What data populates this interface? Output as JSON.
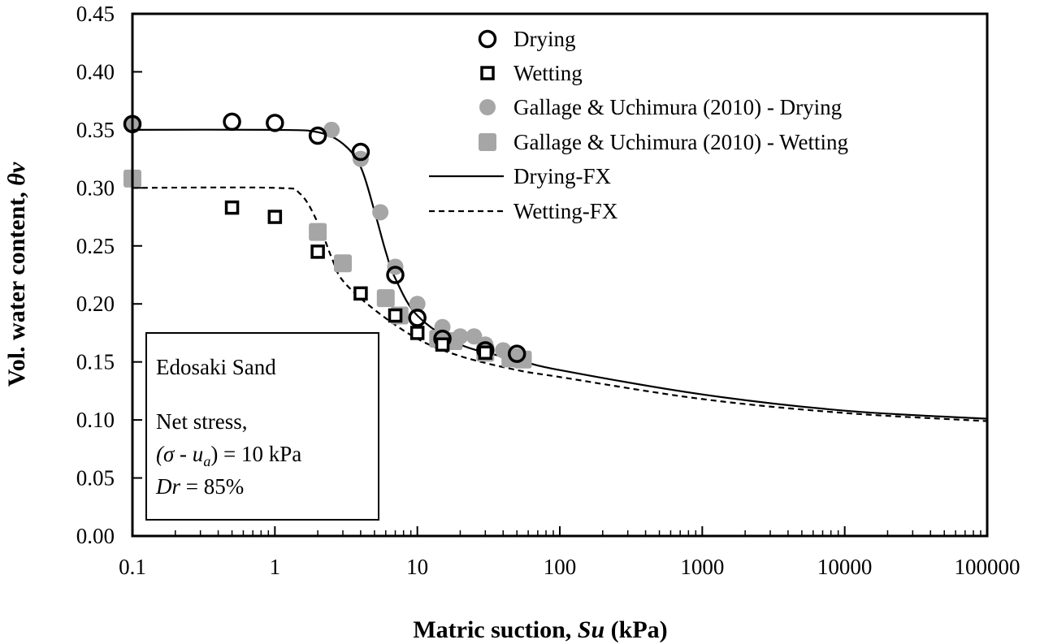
{
  "chart_data": {
    "type": "scatter",
    "title": "",
    "xlabel": "Matric suction, Su (kPa)",
    "xlabel_parts": {
      "pre": "Matric suction, ",
      "italic": "Su",
      "post": " (kPa)"
    },
    "ylabel": "Vol. water content, θv",
    "ylabel_parts": {
      "pre": "Vol. water content, ",
      "italic": "θv"
    },
    "xscale": "log",
    "xlim": [
      0.1,
      100000
    ],
    "ylim": [
      0,
      0.45
    ],
    "xticks": [
      "0.1",
      "1",
      "10",
      "100",
      "1000",
      "10000",
      "100000"
    ],
    "yticks": [
      "0.00",
      "0.05",
      "0.10",
      "0.15",
      "0.20",
      "0.25",
      "0.30",
      "0.35",
      "0.40",
      "0.45"
    ],
    "grid": false,
    "legend_placement": "top-right",
    "series": [
      {
        "name": "Drying",
        "marker": "open-circle",
        "color": "#000000",
        "x": [
          0.1,
          0.5,
          1,
          2,
          4,
          7,
          10,
          15,
          30,
          50
        ],
        "y": [
          0.355,
          0.357,
          0.356,
          0.345,
          0.331,
          0.225,
          0.188,
          0.17,
          0.16,
          0.157
        ]
      },
      {
        "name": "Wetting",
        "marker": "open-square",
        "color": "#000000",
        "x": [
          0.5,
          1,
          2,
          4,
          7,
          10,
          15,
          30
        ],
        "y": [
          0.283,
          0.275,
          0.245,
          0.209,
          0.19,
          0.175,
          0.165,
          0.158
        ]
      },
      {
        "name": "Gallage & Uchimura (2010) - Drying",
        "marker": "filled-circle",
        "color": "#a6a6a6",
        "x": [
          0.1,
          2.5,
          4,
          5.5,
          7,
          10,
          15,
          20,
          25,
          30,
          40,
          50
        ],
        "y": [
          0.355,
          0.35,
          0.325,
          0.279,
          0.232,
          0.2,
          0.18,
          0.172,
          0.172,
          0.165,
          0.16,
          0.155
        ]
      },
      {
        "name": "Gallage & Uchimura (2010) - Wetting",
        "marker": "filled-square",
        "color": "#a6a6a6",
        "x": [
          0.1,
          2,
          3,
          6,
          7.5,
          14,
          18,
          30,
          45,
          55
        ],
        "y": [
          0.308,
          0.262,
          0.235,
          0.205,
          0.19,
          0.17,
          0.168,
          0.158,
          0.153,
          0.152
        ]
      },
      {
        "name": "Drying-FX",
        "line": "solid",
        "color": "#000000",
        "x": [
          0.1,
          1,
          2,
          3,
          4,
          5,
          6,
          7,
          10,
          20,
          50,
          100,
          1000,
          10000,
          100000
        ],
        "y": [
          0.35,
          0.35,
          0.348,
          0.338,
          0.318,
          0.28,
          0.245,
          0.222,
          0.19,
          0.165,
          0.152,
          0.143,
          0.122,
          0.108,
          0.101
        ]
      },
      {
        "name": "Wetting-FX",
        "line": "dashed",
        "color": "#000000",
        "x": [
          0.1,
          1,
          1.5,
          2,
          2.5,
          3,
          5,
          10,
          20,
          50,
          100,
          1000,
          10000,
          100000
        ],
        "y": [
          0.3,
          0.3,
          0.295,
          0.27,
          0.24,
          0.22,
          0.195,
          0.17,
          0.155,
          0.143,
          0.137,
          0.118,
          0.106,
          0.099
        ]
      }
    ],
    "annotation": {
      "line1": "Edosaki Sand",
      "line2": "Net stress,",
      "line3_pre": "(σ - u",
      "line3_sub": "a",
      "line3_post": ") = 10 kPa",
      "line4_italic": "Dr",
      "line4_post": " = 85%"
    }
  }
}
